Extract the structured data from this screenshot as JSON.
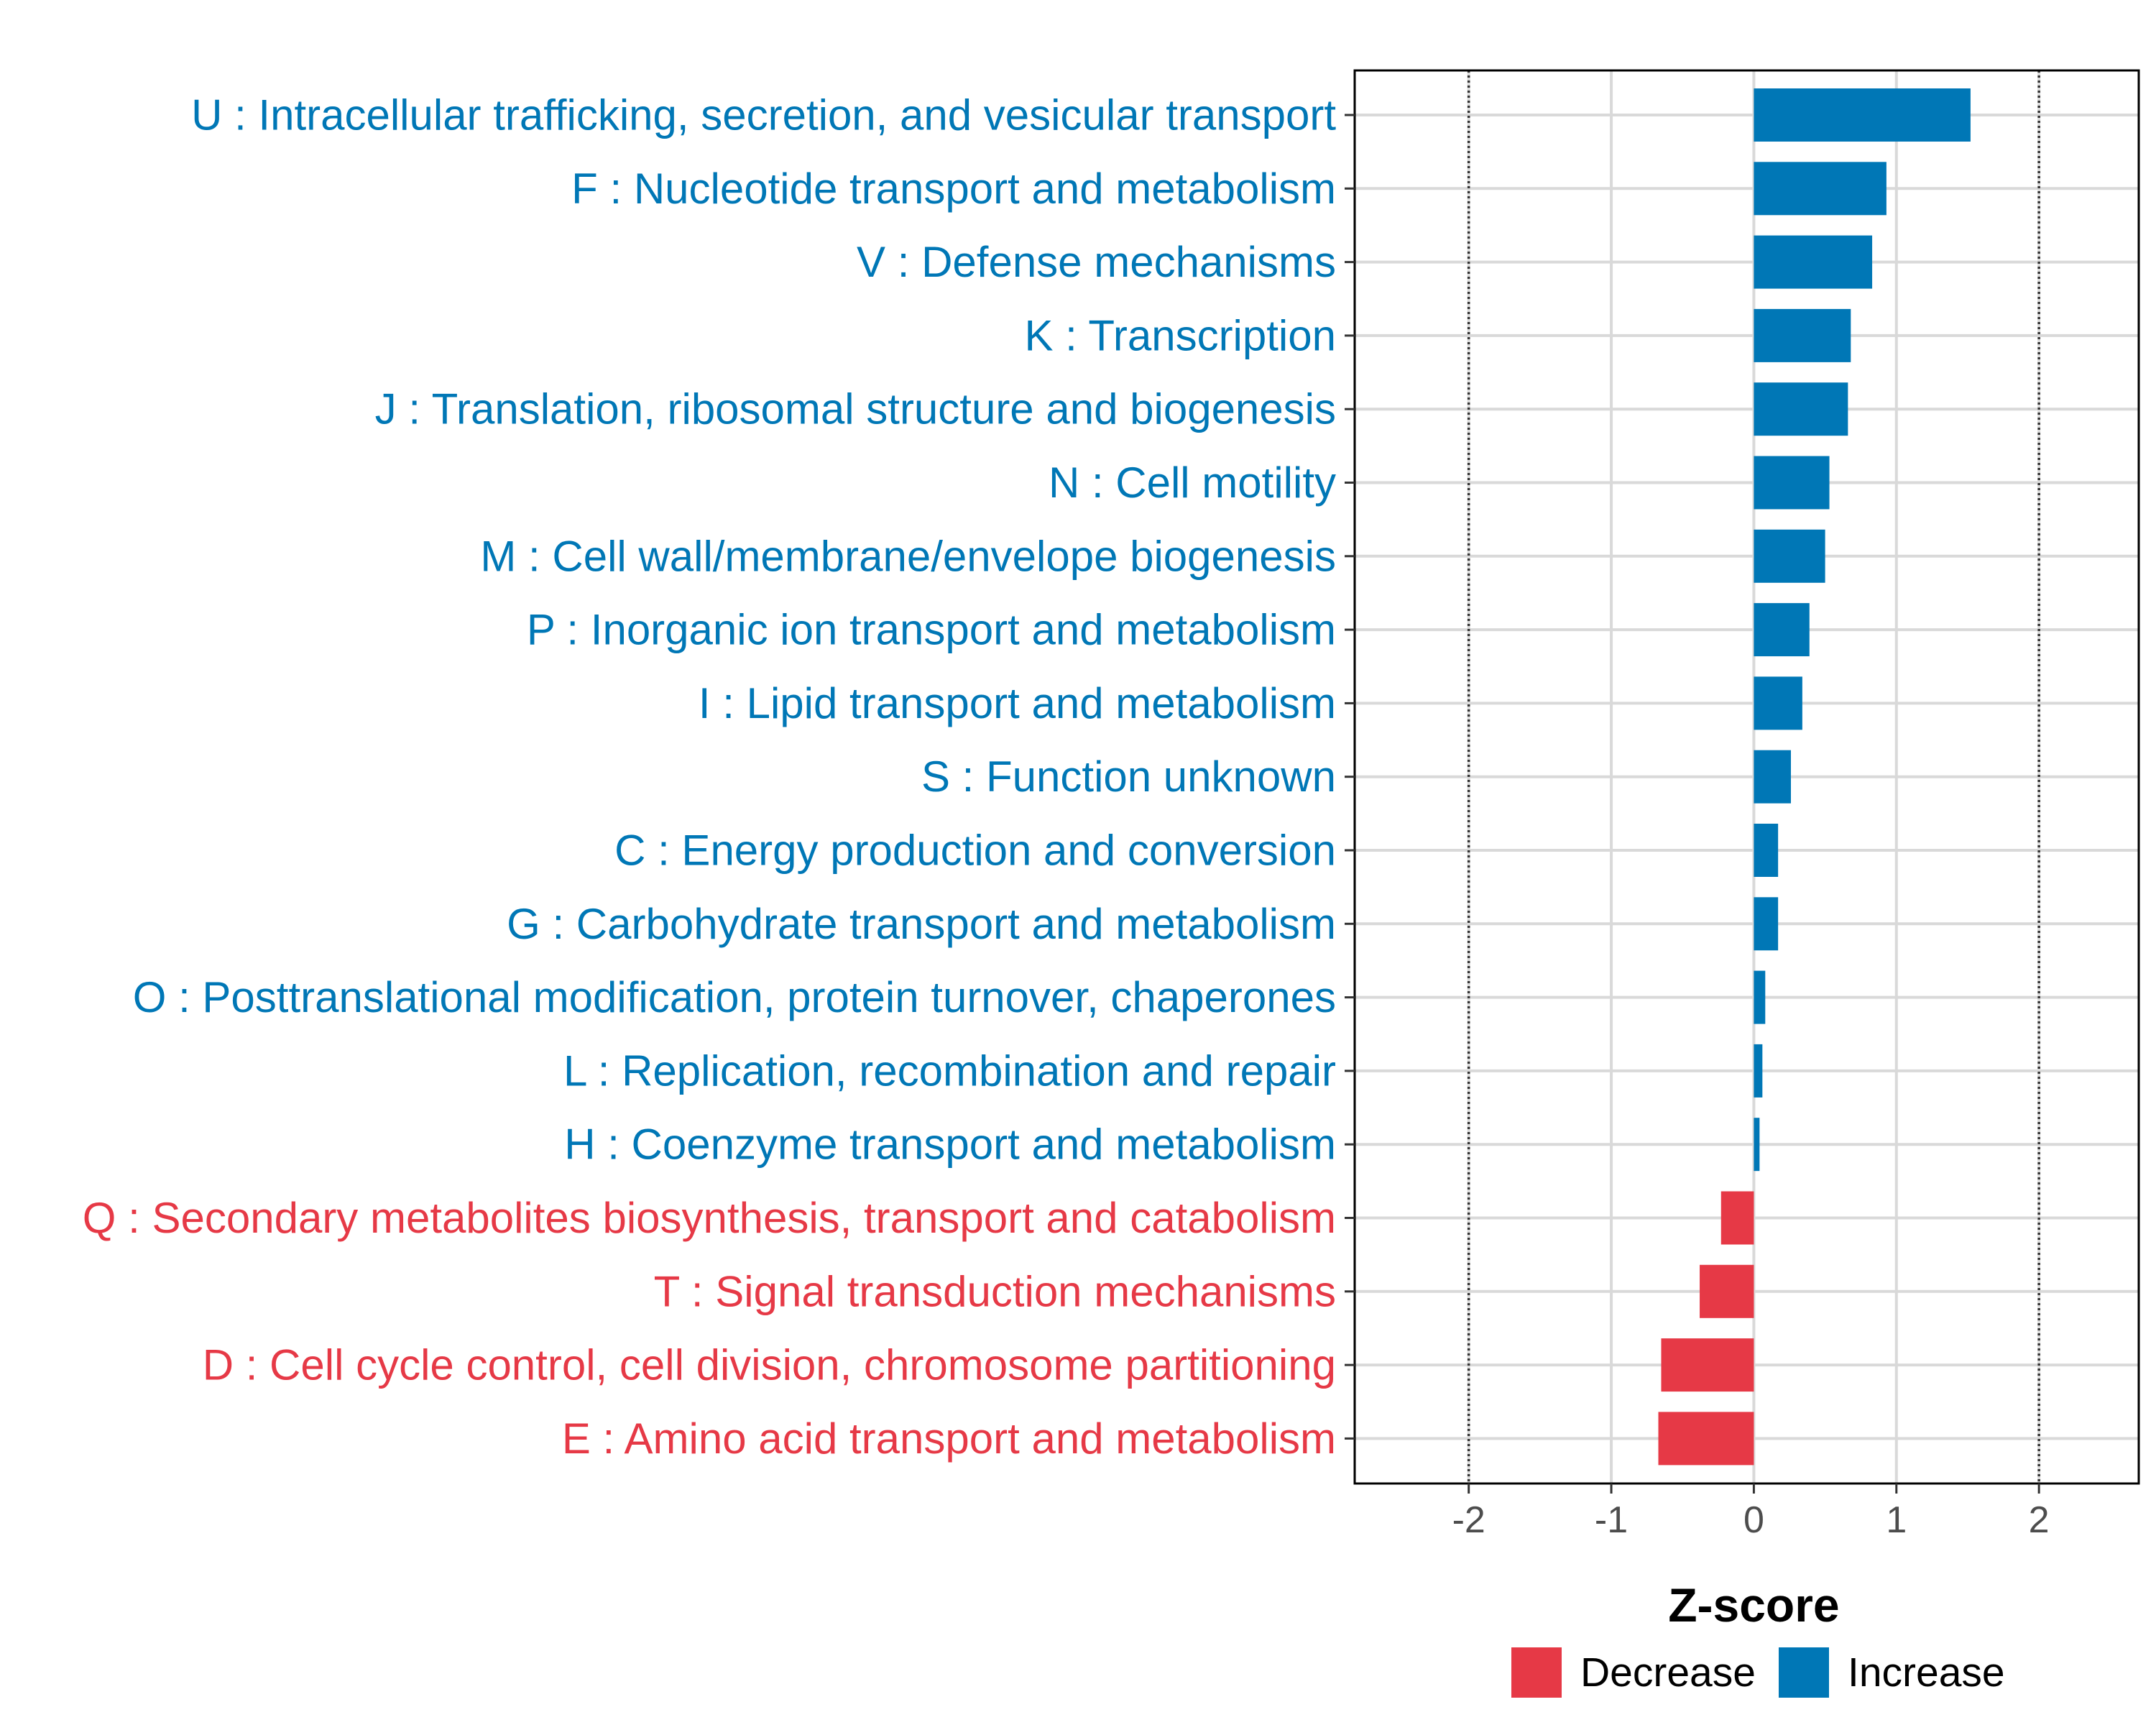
{
  "chart_data": {
    "type": "bar",
    "orientation": "horizontal",
    "xlabel": "Z-score",
    "ylabel": "",
    "xlim": [
      -2.8,
      2.7
    ],
    "x_ticks": [
      -2,
      -1,
      0,
      1,
      2
    ],
    "x_tick_labels": [
      "-2",
      "-1",
      "0",
      "1",
      "2"
    ],
    "reference_lines": [
      -2,
      2
    ],
    "grid": true,
    "legend_position": "bottom-right",
    "categories": [
      "U : Intracellular trafficking, secretion, and vesicular transport",
      "F : Nucleotide transport and metabolism",
      "V : Defense mechanisms",
      "K : Transcription",
      "J : Translation, ribosomal structure and biogenesis",
      "N : Cell motility",
      "M : Cell wall/membrane/envelope biogenesis",
      "P : Inorganic ion transport and metabolism",
      "I : Lipid transport and metabolism",
      "S : Function unknown",
      "C : Energy production and conversion",
      "G : Carbohydrate transport and metabolism",
      "O : Posttranslational modification, protein turnover, chaperones",
      "L : Replication, recombination and repair",
      "H : Coenzyme transport and metabolism",
      "Q : Secondary metabolites biosynthesis, transport and catabolism",
      "T : Signal transduction mechanisms",
      "D : Cell cycle control, cell division, chromosome partitioning",
      "E : Amino acid transport and metabolism"
    ],
    "values": [
      1.52,
      0.93,
      0.83,
      0.68,
      0.66,
      0.53,
      0.5,
      0.39,
      0.34,
      0.26,
      0.17,
      0.17,
      0.08,
      0.06,
      0.04,
      -0.23,
      -0.38,
      -0.65,
      -0.67
    ],
    "groups": [
      "Increase",
      "Increase",
      "Increase",
      "Increase",
      "Increase",
      "Increase",
      "Increase",
      "Increase",
      "Increase",
      "Increase",
      "Increase",
      "Increase",
      "Increase",
      "Increase",
      "Increase",
      "Decrease",
      "Decrease",
      "Decrease",
      "Decrease"
    ],
    "legend": [
      {
        "name": "Decrease",
        "color": "#E63946"
      },
      {
        "name": "Increase",
        "color": "#0077B6"
      }
    ]
  }
}
